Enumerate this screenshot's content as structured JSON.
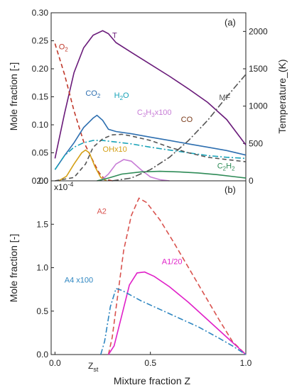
{
  "chart_data": [
    {
      "panel_label": "(a)",
      "type": "line",
      "ylabel": "Mole fraction [-]",
      "y2label": "Temperature_(K)",
      "xlim": [
        -0.02,
        1.0
      ],
      "ylim": [
        0,
        0.3
      ],
      "y2lim": [
        0,
        2250
      ],
      "yticks": [
        "0.00",
        "0.05",
        "0.10",
        "0.15",
        "0.20",
        "0.25",
        "0.30"
      ],
      "y2ticks": [
        "0",
        "500",
        "1000",
        "1500",
        "2000"
      ],
      "series": [
        {
          "name": "T",
          "axis": "right",
          "color": "#6a1b7a",
          "dash": "solid",
          "points": [
            [
              0.0,
              300
            ],
            [
              0.05,
              900
            ],
            [
              0.1,
              1450
            ],
            [
              0.15,
              1780
            ],
            [
              0.2,
              1950
            ],
            [
              0.25,
              2010
            ],
            [
              0.28,
              1970
            ],
            [
              0.32,
              1850
            ],
            [
              0.4,
              1720
            ],
            [
              0.5,
              1560
            ],
            [
              0.6,
              1400
            ],
            [
              0.7,
              1230
            ],
            [
              0.8,
              1050
            ],
            [
              0.9,
              820
            ],
            [
              1.0,
              480
            ]
          ]
        },
        {
          "name": "O2",
          "axis": "left",
          "color": "#c0392b",
          "dash": "6,4",
          "points": [
            [
              0.0,
              0.245
            ],
            [
              0.05,
              0.19
            ],
            [
              0.1,
              0.125
            ],
            [
              0.15,
              0.07
            ],
            [
              0.2,
              0.035
            ],
            [
              0.23,
              0.015
            ],
            [
              0.26,
              0.003
            ],
            [
              0.3,
              0.0
            ]
          ]
        },
        {
          "name": "CO2",
          "axis": "left",
          "color": "#2e6fb0",
          "dash": "solid",
          "points": [
            [
              0.0,
              0.02
            ],
            [
              0.05,
              0.045
            ],
            [
              0.1,
              0.068
            ],
            [
              0.15,
              0.095
            ],
            [
              0.2,
              0.112
            ],
            [
              0.22,
              0.117
            ],
            [
              0.25,
              0.108
            ],
            [
              0.28,
              0.092
            ],
            [
              0.32,
              0.088
            ],
            [
              0.4,
              0.084
            ],
            [
              0.5,
              0.078
            ],
            [
              0.6,
              0.072
            ],
            [
              0.7,
              0.066
            ],
            [
              0.8,
              0.06
            ],
            [
              0.9,
              0.054
            ],
            [
              1.0,
              0.046
            ]
          ]
        },
        {
          "name": "H2O",
          "axis": "left",
          "color": "#17a2b8",
          "dash": "8,3,2,3",
          "points": [
            [
              0.0,
              0.02
            ],
            [
              0.05,
              0.045
            ],
            [
              0.1,
              0.06
            ],
            [
              0.15,
              0.068
            ],
            [
              0.2,
              0.072
            ],
            [
              0.25,
              0.072
            ],
            [
              0.3,
              0.07
            ],
            [
              0.4,
              0.066
            ],
            [
              0.5,
              0.06
            ],
            [
              0.6,
              0.055
            ],
            [
              0.7,
              0.05
            ],
            [
              0.8,
              0.045
            ],
            [
              0.9,
              0.042
            ],
            [
              1.0,
              0.04
            ]
          ]
        },
        {
          "name": "OHx10",
          "axis": "left",
          "color": "#d4a017",
          "dash": "solid",
          "points": [
            [
              0.02,
              0.0
            ],
            [
              0.06,
              0.008
            ],
            [
              0.1,
              0.03
            ],
            [
              0.14,
              0.05
            ],
            [
              0.16,
              0.055
            ],
            [
              0.18,
              0.05
            ],
            [
              0.21,
              0.025
            ],
            [
              0.24,
              0.006
            ],
            [
              0.27,
              0.0
            ]
          ]
        },
        {
          "name": "C3H3x100",
          "axis": "left",
          "color": "#c77dd6",
          "dash": "solid",
          "points": [
            [
              0.24,
              0.0
            ],
            [
              0.28,
              0.012
            ],
            [
              0.32,
              0.03
            ],
            [
              0.36,
              0.038
            ],
            [
              0.4,
              0.035
            ],
            [
              0.45,
              0.02
            ],
            [
              0.5,
              0.007
            ],
            [
              0.55,
              0.002
            ],
            [
              0.6,
              0.0
            ]
          ]
        },
        {
          "name": "CO",
          "axis": "left",
          "color": "#555555",
          "dash": "6,4",
          "points": [
            [
              0.0,
              0.0
            ],
            [
              0.1,
              0.006
            ],
            [
              0.16,
              0.03
            ],
            [
              0.2,
              0.06
            ],
            [
              0.25,
              0.075
            ],
            [
              0.3,
              0.082
            ],
            [
              0.35,
              0.083
            ],
            [
              0.4,
              0.08
            ],
            [
              0.5,
              0.072
            ],
            [
              0.6,
              0.06
            ],
            [
              0.7,
              0.05
            ],
            [
              0.8,
              0.042
            ],
            [
              0.9,
              0.038
            ],
            [
              1.0,
              0.034
            ]
          ]
        },
        {
          "name": "C2H2",
          "axis": "left",
          "color": "#2e8b57",
          "dash": "solid",
          "points": [
            [
              0.22,
              0.0
            ],
            [
              0.28,
              0.005
            ],
            [
              0.35,
              0.012
            ],
            [
              0.45,
              0.016
            ],
            [
              0.55,
              0.017
            ],
            [
              0.65,
              0.016
            ],
            [
              0.75,
              0.014
            ],
            [
              0.85,
              0.011
            ],
            [
              0.95,
              0.007
            ],
            [
              1.0,
              0.005
            ]
          ]
        },
        {
          "name": "MF",
          "axis": "left",
          "color": "#555555",
          "dash": "9,3,2,3",
          "points": [
            [
              0.3,
              0.0
            ],
            [
              0.4,
              0.005
            ],
            [
              0.5,
              0.02
            ],
            [
              0.6,
              0.042
            ],
            [
              0.7,
              0.072
            ],
            [
              0.8,
              0.108
            ],
            [
              0.9,
              0.15
            ],
            [
              1.0,
              0.19
            ]
          ]
        }
      ],
      "annotations": [
        {
          "text": "T",
          "color": "#6a1b7a",
          "x": 0.3,
          "y": 0.255
        },
        {
          "text": "O",
          "sub": "2",
          "color": "#c0392b",
          "x": 0.02,
          "y": 0.235
        },
        {
          "text": "MF",
          "color": "#555555",
          "x": 0.86,
          "y": 0.144
        },
        {
          "text": "CO",
          "sub": "2",
          "color": "#2e6fb0",
          "x": 0.16,
          "y": 0.152
        },
        {
          "text": "H",
          "sub": "2",
          "tail": "O",
          "color": "#17a2b8",
          "x": 0.31,
          "y": 0.148
        },
        {
          "text": "C",
          "sub": "3",
          "tail": "H",
          "sub2": "3",
          "tail2": "x100",
          "color": "#c77dd6",
          "x": 0.43,
          "y": 0.118
        },
        {
          "text": "CO",
          "color": "#7a3b1a",
          "x": 0.66,
          "y": 0.105
        },
        {
          "text": "OHx10",
          "color": "#d4a017",
          "x": 0.25,
          "y": 0.052
        },
        {
          "text": "C",
          "sub": "2",
          "tail": "H",
          "sub2": "2",
          "color": "#2e8b57",
          "x": 0.85,
          "y": 0.022
        }
      ]
    },
    {
      "panel_label": "(b)",
      "type": "line",
      "ylabel": "Mole fraction [-]",
      "xlabel": "Mixture fraction Z",
      "xlim": [
        -0.02,
        1.0
      ],
      "ylim": [
        0,
        2.0
      ],
      "y_multiplier": "x10",
      "y_multiplier_exp": "-4",
      "yticks": [
        "0.0",
        "0.5",
        "1.0",
        "1.5",
        "2.0"
      ],
      "xticks": [
        "0.0",
        "0.5",
        "1.0"
      ],
      "zst_label": "Z",
      "zst_sub": "st",
      "series": [
        {
          "name": "A2",
          "color": "#d9534f",
          "dash": "7,4",
          "points": [
            [
              0.28,
              0.0
            ],
            [
              0.3,
              0.2
            ],
            [
              0.33,
              0.7
            ],
            [
              0.36,
              1.2
            ],
            [
              0.4,
              1.6
            ],
            [
              0.44,
              1.8
            ],
            [
              0.48,
              1.75
            ],
            [
              0.55,
              1.55
            ],
            [
              0.62,
              1.3
            ],
            [
              0.7,
              1.0
            ],
            [
              0.78,
              0.7
            ],
            [
              0.86,
              0.4
            ],
            [
              0.93,
              0.15
            ],
            [
              1.0,
              0.0
            ]
          ]
        },
        {
          "name": "A1/20",
          "color": "#e020c8",
          "dash": "solid",
          "points": [
            [
              0.28,
              0.0
            ],
            [
              0.31,
              0.1
            ],
            [
              0.35,
              0.45
            ],
            [
              0.39,
              0.8
            ],
            [
              0.43,
              0.94
            ],
            [
              0.47,
              0.95
            ],
            [
              0.52,
              0.9
            ],
            [
              0.6,
              0.78
            ],
            [
              0.7,
              0.6
            ],
            [
              0.8,
              0.4
            ],
            [
              0.9,
              0.2
            ],
            [
              0.96,
              0.08
            ],
            [
              1.0,
              0.0
            ]
          ]
        },
        {
          "name": "A4 x100",
          "color": "#2e86c1",
          "dash": "8,3,2,3",
          "points": [
            [
              0.24,
              0.0
            ],
            [
              0.26,
              0.15
            ],
            [
              0.29,
              0.55
            ],
            [
              0.32,
              0.76
            ],
            [
              0.35,
              0.74
            ],
            [
              0.45,
              0.62
            ],
            [
              0.55,
              0.52
            ],
            [
              0.65,
              0.42
            ],
            [
              0.75,
              0.32
            ],
            [
              0.85,
              0.2
            ],
            [
              0.93,
              0.1
            ],
            [
              1.0,
              0.0
            ]
          ]
        }
      ],
      "annotations": [
        {
          "text": "A2",
          "color": "#d9534f",
          "x": 0.22,
          "y": 1.62
        },
        {
          "text": "A1/20",
          "color": "#e020c8",
          "x": 0.56,
          "y": 1.04
        },
        {
          "text": "A4 x100",
          "color": "#2e86c1",
          "x": 0.05,
          "y": 0.83
        }
      ]
    }
  ]
}
